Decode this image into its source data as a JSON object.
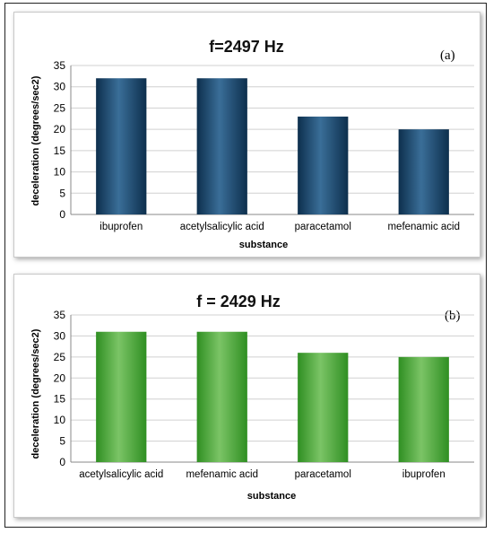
{
  "chart_data": [
    {
      "type": "bar",
      "panel_label": "(a)",
      "title": "f=2497 Hz",
      "xlabel": "substance",
      "ylabel": "deceleration (degrees/sec2)",
      "categories": [
        "ibuprofen",
        "acetylsalicylic acid",
        "paracetamol",
        "mefenamic acid"
      ],
      "values": [
        32,
        32,
        23,
        20
      ],
      "ylim": [
        0,
        35
      ],
      "yticks": [
        0,
        5,
        10,
        15,
        20,
        25,
        30,
        35
      ],
      "grid": true,
      "legend": "none",
      "colors": {
        "bar_edge": "#0d2f4d",
        "bar_mid": "#3a6e98",
        "grid": "#d0d0d0"
      }
    },
    {
      "type": "bar",
      "panel_label": "(b)",
      "title": "f = 2429 Hz",
      "xlabel": "substance",
      "ylabel": "deceleration (degrees/sec2)",
      "categories": [
        "acetylsalicylic acid",
        "mefenamic acid",
        "paracetamol",
        "ibuprofen"
      ],
      "values": [
        31,
        31,
        26,
        25
      ],
      "ylim": [
        0,
        35
      ],
      "yticks": [
        0,
        5,
        10,
        15,
        20,
        25,
        30,
        35
      ],
      "grid": true,
      "legend": "none",
      "colors": {
        "bar_edge": "#2f8f22",
        "bar_mid": "#7bc466",
        "grid": "#d0d0d0"
      }
    }
  ]
}
